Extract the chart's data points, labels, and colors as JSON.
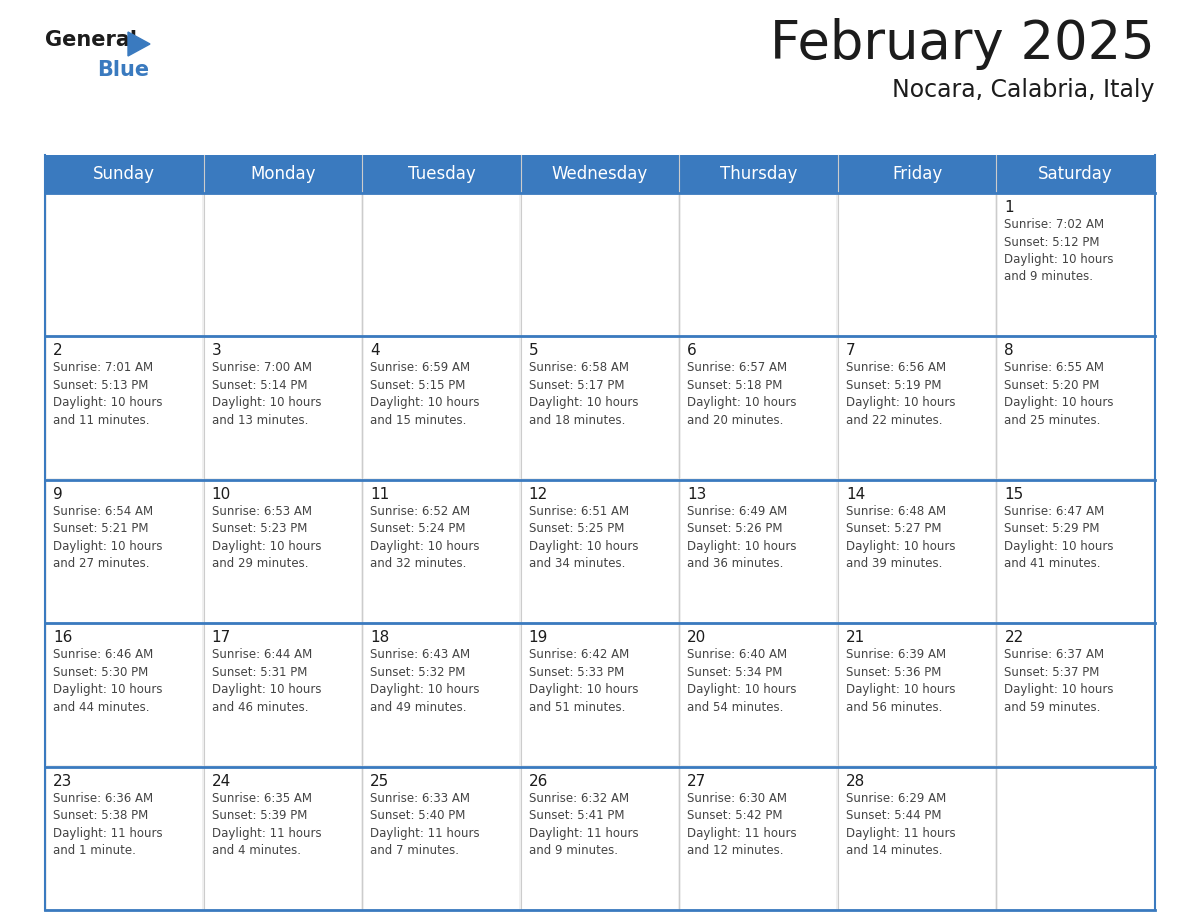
{
  "title": "February 2025",
  "subtitle": "Nocara, Calabria, Italy",
  "header_color": "#3a7abf",
  "header_text_color": "#ffffff",
  "background_color": "#ffffff",
  "cell_bg_color": "#ffffff",
  "separator_color": "#3a7abf",
  "grid_color": "#cccccc",
  "day_headers": [
    "Sunday",
    "Monday",
    "Tuesday",
    "Wednesday",
    "Thursday",
    "Friday",
    "Saturday"
  ],
  "title_fontsize": 38,
  "subtitle_fontsize": 17,
  "header_fontsize": 12,
  "day_num_fontsize": 11,
  "info_fontsize": 8.5,
  "weeks": [
    [
      {
        "day": null,
        "info": null
      },
      {
        "day": null,
        "info": null
      },
      {
        "day": null,
        "info": null
      },
      {
        "day": null,
        "info": null
      },
      {
        "day": null,
        "info": null
      },
      {
        "day": null,
        "info": null
      },
      {
        "day": 1,
        "info": "Sunrise: 7:02 AM\nSunset: 5:12 PM\nDaylight: 10 hours\nand 9 minutes."
      }
    ],
    [
      {
        "day": 2,
        "info": "Sunrise: 7:01 AM\nSunset: 5:13 PM\nDaylight: 10 hours\nand 11 minutes."
      },
      {
        "day": 3,
        "info": "Sunrise: 7:00 AM\nSunset: 5:14 PM\nDaylight: 10 hours\nand 13 minutes."
      },
      {
        "day": 4,
        "info": "Sunrise: 6:59 AM\nSunset: 5:15 PM\nDaylight: 10 hours\nand 15 minutes."
      },
      {
        "day": 5,
        "info": "Sunrise: 6:58 AM\nSunset: 5:17 PM\nDaylight: 10 hours\nand 18 minutes."
      },
      {
        "day": 6,
        "info": "Sunrise: 6:57 AM\nSunset: 5:18 PM\nDaylight: 10 hours\nand 20 minutes."
      },
      {
        "day": 7,
        "info": "Sunrise: 6:56 AM\nSunset: 5:19 PM\nDaylight: 10 hours\nand 22 minutes."
      },
      {
        "day": 8,
        "info": "Sunrise: 6:55 AM\nSunset: 5:20 PM\nDaylight: 10 hours\nand 25 minutes."
      }
    ],
    [
      {
        "day": 9,
        "info": "Sunrise: 6:54 AM\nSunset: 5:21 PM\nDaylight: 10 hours\nand 27 minutes."
      },
      {
        "day": 10,
        "info": "Sunrise: 6:53 AM\nSunset: 5:23 PM\nDaylight: 10 hours\nand 29 minutes."
      },
      {
        "day": 11,
        "info": "Sunrise: 6:52 AM\nSunset: 5:24 PM\nDaylight: 10 hours\nand 32 minutes."
      },
      {
        "day": 12,
        "info": "Sunrise: 6:51 AM\nSunset: 5:25 PM\nDaylight: 10 hours\nand 34 minutes."
      },
      {
        "day": 13,
        "info": "Sunrise: 6:49 AM\nSunset: 5:26 PM\nDaylight: 10 hours\nand 36 minutes."
      },
      {
        "day": 14,
        "info": "Sunrise: 6:48 AM\nSunset: 5:27 PM\nDaylight: 10 hours\nand 39 minutes."
      },
      {
        "day": 15,
        "info": "Sunrise: 6:47 AM\nSunset: 5:29 PM\nDaylight: 10 hours\nand 41 minutes."
      }
    ],
    [
      {
        "day": 16,
        "info": "Sunrise: 6:46 AM\nSunset: 5:30 PM\nDaylight: 10 hours\nand 44 minutes."
      },
      {
        "day": 17,
        "info": "Sunrise: 6:44 AM\nSunset: 5:31 PM\nDaylight: 10 hours\nand 46 minutes."
      },
      {
        "day": 18,
        "info": "Sunrise: 6:43 AM\nSunset: 5:32 PM\nDaylight: 10 hours\nand 49 minutes."
      },
      {
        "day": 19,
        "info": "Sunrise: 6:42 AM\nSunset: 5:33 PM\nDaylight: 10 hours\nand 51 minutes."
      },
      {
        "day": 20,
        "info": "Sunrise: 6:40 AM\nSunset: 5:34 PM\nDaylight: 10 hours\nand 54 minutes."
      },
      {
        "day": 21,
        "info": "Sunrise: 6:39 AM\nSunset: 5:36 PM\nDaylight: 10 hours\nand 56 minutes."
      },
      {
        "day": 22,
        "info": "Sunrise: 6:37 AM\nSunset: 5:37 PM\nDaylight: 10 hours\nand 59 minutes."
      }
    ],
    [
      {
        "day": 23,
        "info": "Sunrise: 6:36 AM\nSunset: 5:38 PM\nDaylight: 11 hours\nand 1 minute."
      },
      {
        "day": 24,
        "info": "Sunrise: 6:35 AM\nSunset: 5:39 PM\nDaylight: 11 hours\nand 4 minutes."
      },
      {
        "day": 25,
        "info": "Sunrise: 6:33 AM\nSunset: 5:40 PM\nDaylight: 11 hours\nand 7 minutes."
      },
      {
        "day": 26,
        "info": "Sunrise: 6:32 AM\nSunset: 5:41 PM\nDaylight: 11 hours\nand 9 minutes."
      },
      {
        "day": 27,
        "info": "Sunrise: 6:30 AM\nSunset: 5:42 PM\nDaylight: 11 hours\nand 12 minutes."
      },
      {
        "day": 28,
        "info": "Sunrise: 6:29 AM\nSunset: 5:44 PM\nDaylight: 11 hours\nand 14 minutes."
      },
      {
        "day": null,
        "info": null
      }
    ]
  ],
  "logo_text_general": "General",
  "logo_text_blue": "Blue"
}
